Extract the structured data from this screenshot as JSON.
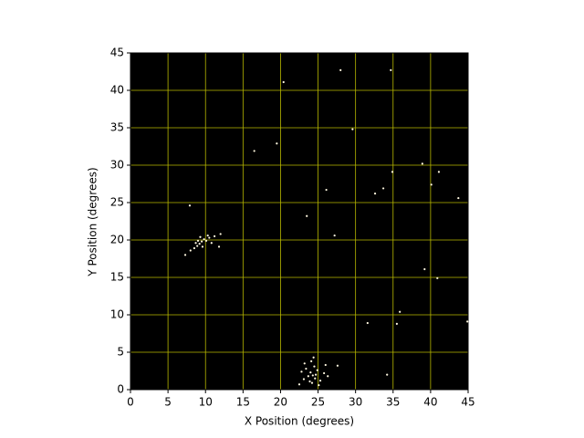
{
  "chart_data": {
    "type": "scatter",
    "xlabel": "X Position (degrees)",
    "ylabel": "Y Position (degrees)",
    "x": [
      28.0,
      34.7,
      20.4,
      19.5,
      16.5,
      29.6,
      7.9,
      26.1,
      32.6,
      33.7,
      34.9,
      38.9,
      41.1,
      40.1,
      43.7,
      23.5,
      27.2,
      39.2,
      40.9,
      31.6,
      35.5,
      35.9,
      44.9,
      34.2,
      9.5,
      9.8,
      9.2,
      10.1,
      8.9,
      10.5,
      9.0,
      8.5,
      11.2,
      7.3,
      8.0,
      10.8,
      9.6,
      11.8,
      12.0,
      9.3,
      8.7,
      10.3,
      24.3,
      24.0,
      24.6,
      23.7,
      24.9,
      23.4,
      25.3,
      24.2,
      23.1,
      25.8,
      24.5,
      22.8,
      26.3,
      24.1,
      23.9,
      25.1,
      24.7,
      22.5,
      26.0,
      24.4,
      27.6,
      23.2
    ],
    "y": [
      42.7,
      42.7,
      41.1,
      32.9,
      31.9,
      34.8,
      24.6,
      26.7,
      26.2,
      26.9,
      29.1,
      30.2,
      29.1,
      27.4,
      25.6,
      23.2,
      20.6,
      16.1,
      14.9,
      8.9,
      8.8,
      10.4,
      9.1,
      2.0,
      19.8,
      20.1,
      19.5,
      19.9,
      19.2,
      20.3,
      19.9,
      18.9,
      20.5,
      18.0,
      18.6,
      19.6,
      19.1,
      19.1,
      20.8,
      20.4,
      19.6,
      20.6,
      1.9,
      2.3,
      1.5,
      1.8,
      2.6,
      2.8,
      1.2,
      0.9,
      1.4,
      2.2,
      3.1,
      2.4,
      1.8,
      3.8,
      1.1,
      0.6,
      2.0,
      0.7,
      3.3,
      4.3,
      3.2,
      3.5
    ],
    "color": "#fff8e0",
    "background": "#000000",
    "grid": true,
    "grid_color": "#b8b800",
    "xlim": [
      0,
      45
    ],
    "ylim": [
      0,
      45
    ],
    "xticks": [
      0,
      5,
      10,
      15,
      20,
      25,
      30,
      35,
      40,
      45
    ],
    "yticks": [
      0,
      5,
      10,
      15,
      20,
      25,
      30,
      35,
      40,
      45
    ]
  }
}
